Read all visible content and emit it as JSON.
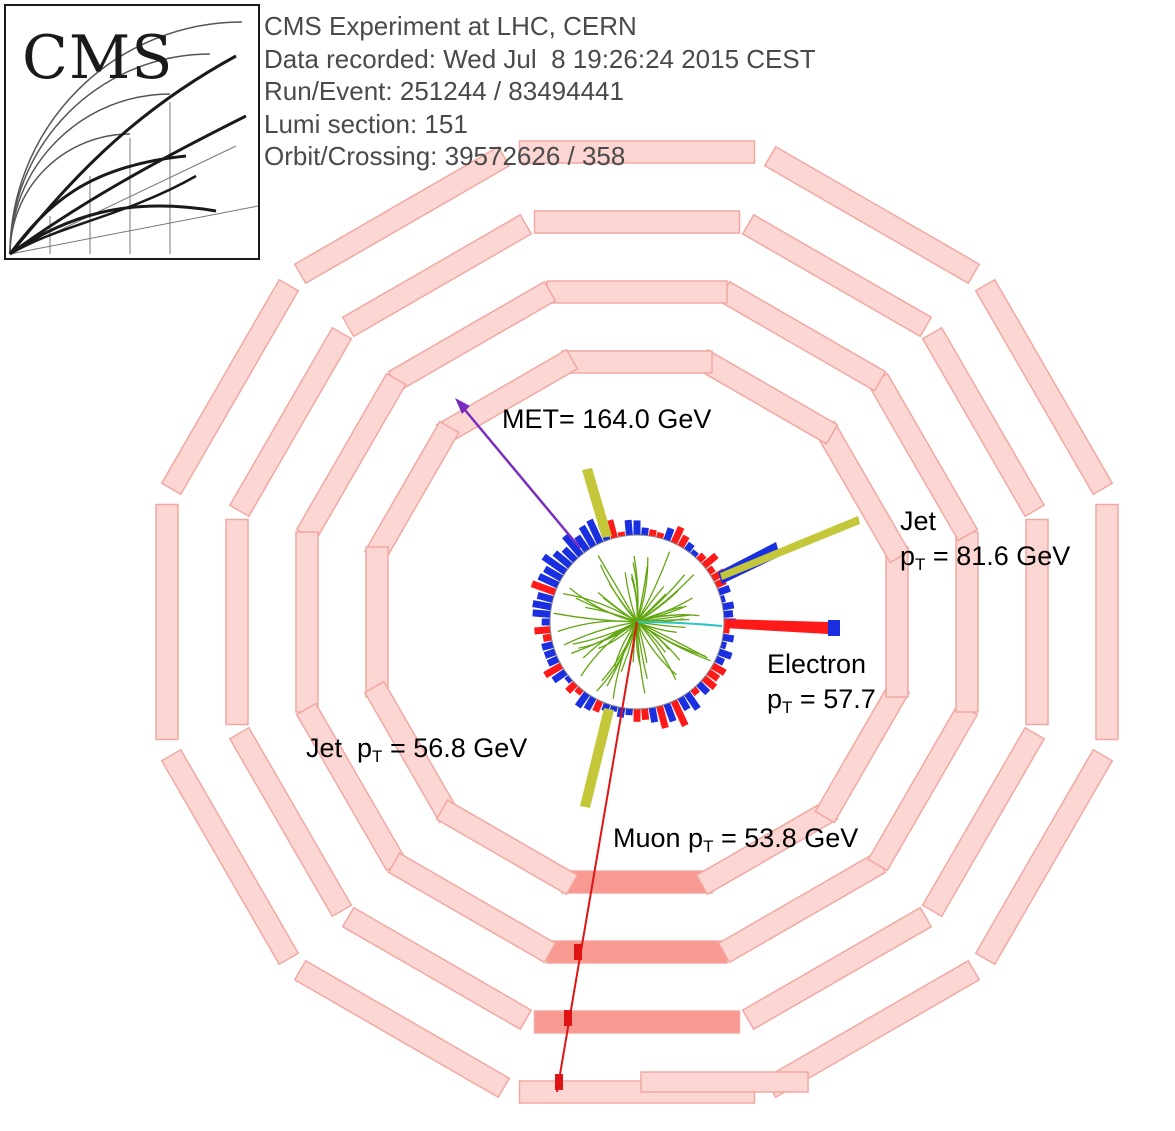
{
  "colors": {
    "chamber_fill": "#fcd6d2",
    "chamber_stroke": "#f2a8a2",
    "hit_chamber_fill": "#f99a92",
    "hcal_bar": "#1a2fe0",
    "ecal_bar": "#ff1a1a",
    "jet_cone": "#c4c73a",
    "met_arrow": "#7a2dbf",
    "track": "#62a60e",
    "electron_track": "#2ec4c4",
    "muon_track": "#e01414",
    "text": "#000000",
    "info_text": "#4a4a4a"
  },
  "logo": {
    "text": "CMS"
  },
  "event_info": {
    "line1": "CMS Experiment at LHC, CERN",
    "line2": "Data recorded: Wed Jul  8 19:26:24 2015 CEST",
    "line3": "Run/Event: 251244 / 83494441",
    "line4": "Lumi section: 151",
    "line5": "Orbit/Crossing: 39572626 / 358"
  },
  "labels": {
    "met": "MET= 164.0 GeV",
    "jet1_title": "Jet",
    "jet1_p": "p",
    "jet1_sub": "T",
    "jet1_value": " = 81.6 GeV",
    "electron_title": "Electron",
    "electron_p": "p",
    "electron_sub": "T",
    "electron_value": " = 57.7",
    "jet2_prefix": "Jet  p",
    "jet2_sub": "T",
    "jet2_value": " = 56.8 GeV",
    "muon_prefix": "Muon p",
    "muon_sub": "T",
    "muon_value": " = 53.8 GeV"
  }
}
